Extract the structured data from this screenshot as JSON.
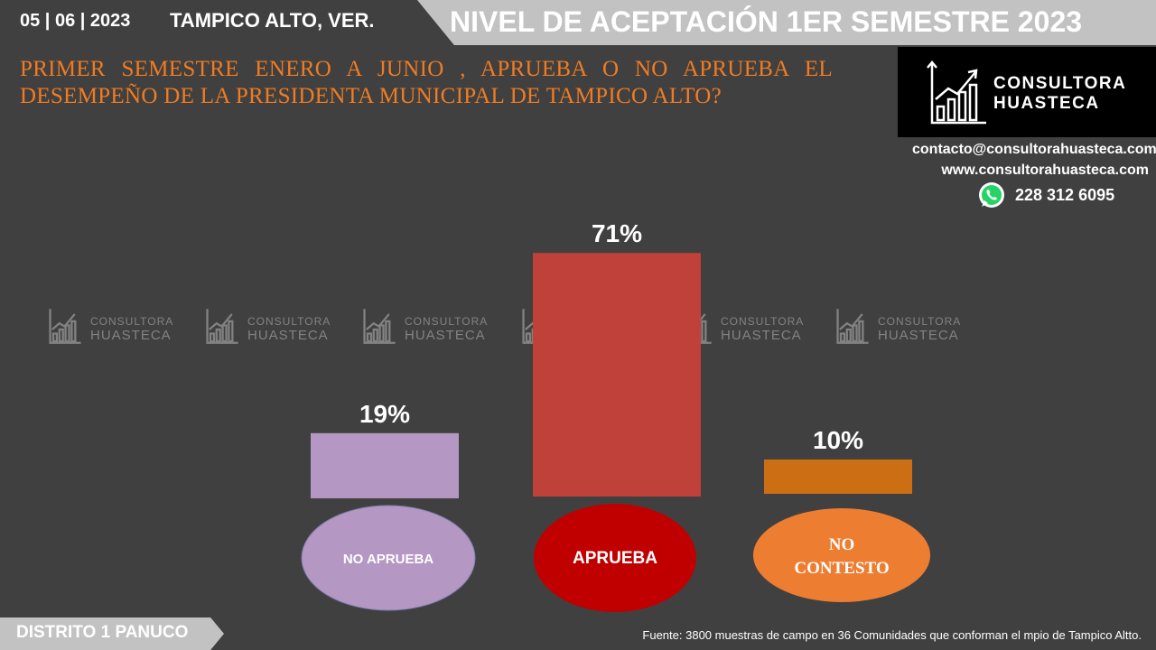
{
  "header": {
    "date": "05 | 06 | 2023",
    "city": "TAMPICO ALTO, VER.",
    "banner_title": "NIVEL DE ACEPTACIÓN  1ER SEMESTRE 2023"
  },
  "question": "PRIMER SEMESTRE ENERO A JUNIO , APRUEBA O NO APRUEBA EL DESEMPEÑO DE LA PRESIDENTA MUNICIPAL DE  TAMPICO ALTO?",
  "brand": {
    "logo_line1": "CONSULTORA",
    "logo_line2": "HUASTECA",
    "email": "contacto@consultorahuasteca.com",
    "website": "www.consultorahuasteca.com",
    "phone": "228 312 6095",
    "phone_icon": "whatsapp-icon"
  },
  "watermark": {
    "line1": "CONSULTORA",
    "line2": "HUASTECA"
  },
  "chart_data": {
    "type": "bar",
    "categories": [
      "NO APRUEBA",
      "APRUEBA",
      "NO CONTESTO"
    ],
    "values": [
      19,
      71,
      10
    ],
    "value_labels": [
      "19%",
      "71%",
      "10%"
    ],
    "unit": "%",
    "colors": [
      "#b497c3",
      "#c0403a",
      "#cc6f14"
    ],
    "label_colors": [
      "#b497c3",
      "#c00000",
      "#ed7d31"
    ],
    "title": "",
    "xlabel": "",
    "ylabel": "",
    "ylim": [
      0,
      75
    ],
    "grid": false,
    "legend": "none"
  },
  "footer": {
    "district": "DISTRITO 1 PANUCO",
    "source": "Fuente: 3800 muestras de campo en  36  Comunidades que conforman el mpio de Tampico Altto."
  }
}
